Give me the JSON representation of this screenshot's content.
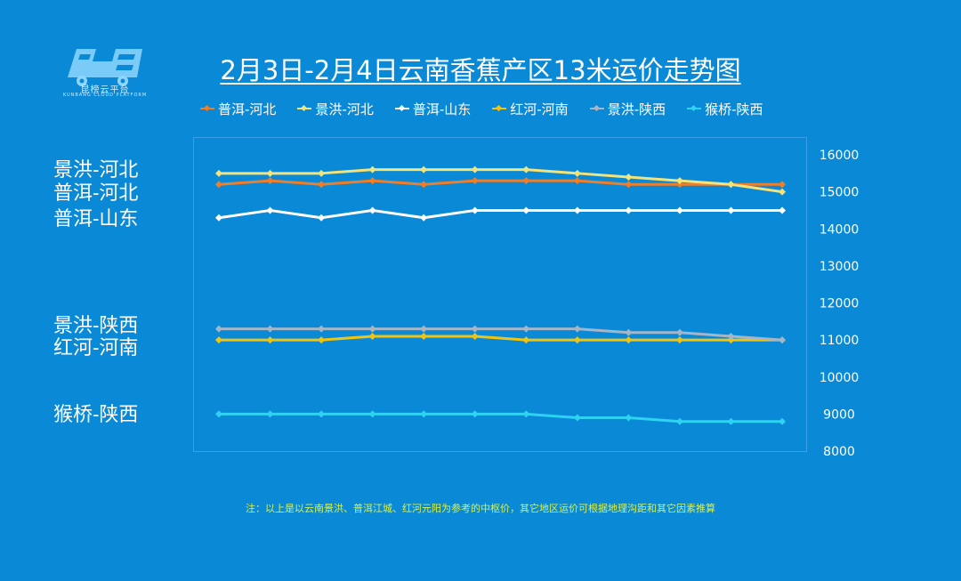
{
  "logo": {
    "name": "昆榜云平台",
    "tagline": "KUNBANG CLOUD PLATFORM"
  },
  "title": "2月3日-2月4日云南香蕉产区13米运价走势图",
  "side_labels": [
    "景洪-河北",
    "普洱-河北",
    "普洱-山东",
    "景洪-陕西",
    "红河-河南",
    "猴桥-陕西"
  ],
  "note": "注：以上是以云南景洪、普洱江城、红河元阳为参考的中枢价，其它地区运价可根据地理沟距和其它因素推算",
  "chart_data": {
    "type": "line",
    "x": [
      1,
      2,
      3,
      4,
      5,
      6,
      7,
      8,
      9,
      10,
      11,
      12
    ],
    "ylim": [
      8000,
      16000
    ],
    "yticks": [
      "8000",
      "9000",
      "10000",
      "11000",
      "12000",
      "13000",
      "14000",
      "15000",
      "16000"
    ],
    "grid": false,
    "legend_position": "top",
    "series": [
      {
        "name": "普洱-河北",
        "color": "#f07d28",
        "values": [
          15200,
          15300,
          15200,
          15300,
          15200,
          15300,
          15300,
          15300,
          15200,
          15200,
          15200,
          15200
        ]
      },
      {
        "name": "景洪-河北",
        "color": "#f4e27a",
        "values": [
          15500,
          15500,
          15500,
          15600,
          15600,
          15600,
          15600,
          15500,
          15400,
          15300,
          15200,
          15000
        ]
      },
      {
        "name": "普洱-山东",
        "color": "#ffffff",
        "values": [
          14300,
          14500,
          14300,
          14500,
          14300,
          14500,
          14500,
          14500,
          14500,
          14500,
          14500,
          14500
        ]
      },
      {
        "name": "红河-河南",
        "color": "#f2c40f",
        "values": [
          11000,
          11000,
          11000,
          11100,
          11100,
          11100,
          11000,
          11000,
          11000,
          11000,
          11000,
          11000
        ]
      },
      {
        "name": "景洪-陕西",
        "color": "#a4b6c8",
        "values": [
          11300,
          11300,
          11300,
          11300,
          11300,
          11300,
          11300,
          11300,
          11200,
          11200,
          11100,
          11000
        ]
      },
      {
        "name": "猴桥-陕西",
        "color": "#2ed3f2",
        "values": [
          9000,
          9000,
          9000,
          9000,
          9000,
          9000,
          9000,
          8900,
          8900,
          8800,
          8800,
          8800
        ]
      }
    ]
  }
}
